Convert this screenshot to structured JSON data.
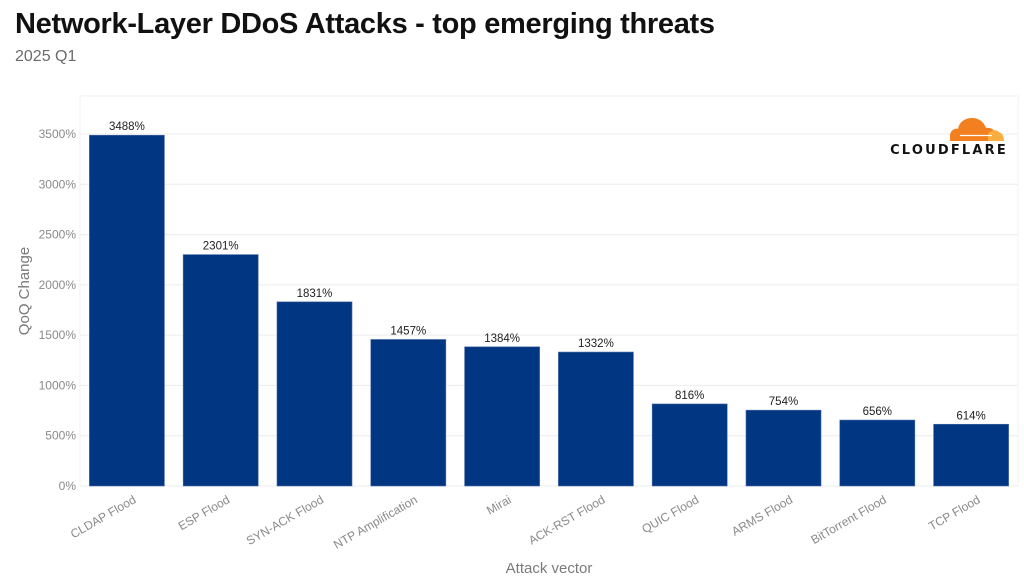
{
  "header": {
    "title": "Network-Layer DDoS Attacks - top emerging threats",
    "subtitle": "2025 Q1"
  },
  "logo": {
    "text": "CLOUDFLARE",
    "icon": "cloud-icon",
    "colors": {
      "primary": "#f38020",
      "secondary": "#faae40"
    }
  },
  "chart_data": {
    "type": "bar",
    "title": "Network-Layer DDoS Attacks - top emerging threats",
    "subtitle": "2025 Q1",
    "xlabel": "Attack vector",
    "ylabel": "QoQ Change",
    "categories": [
      "CLDAP Flood",
      "ESP Flood",
      "SYN-ACK Flood",
      "NTP Amplification",
      "Mirai",
      "ACK-RST Flood",
      "QUIC Flood",
      "ARMS Flood",
      "BitTorrent Flood",
      "TCP Flood"
    ],
    "values": [
      3488,
      2301,
      1831,
      1457,
      1384,
      1332,
      816,
      754,
      656,
      614
    ],
    "data_labels": [
      "3488%",
      "2301%",
      "1831%",
      "1457%",
      "1384%",
      "1332%",
      "816%",
      "754%",
      "656%",
      "614%"
    ],
    "yticks": [
      0,
      500,
      1000,
      1500,
      2000,
      2500,
      3000,
      3500
    ],
    "ytick_labels": [
      "0%",
      "500%",
      "1000%",
      "1500%",
      "2000%",
      "2500%",
      "3000%",
      "3500%"
    ],
    "ylim": [
      0,
      3878
    ],
    "grid": true,
    "legend": "none",
    "bar_color": "#003682"
  }
}
